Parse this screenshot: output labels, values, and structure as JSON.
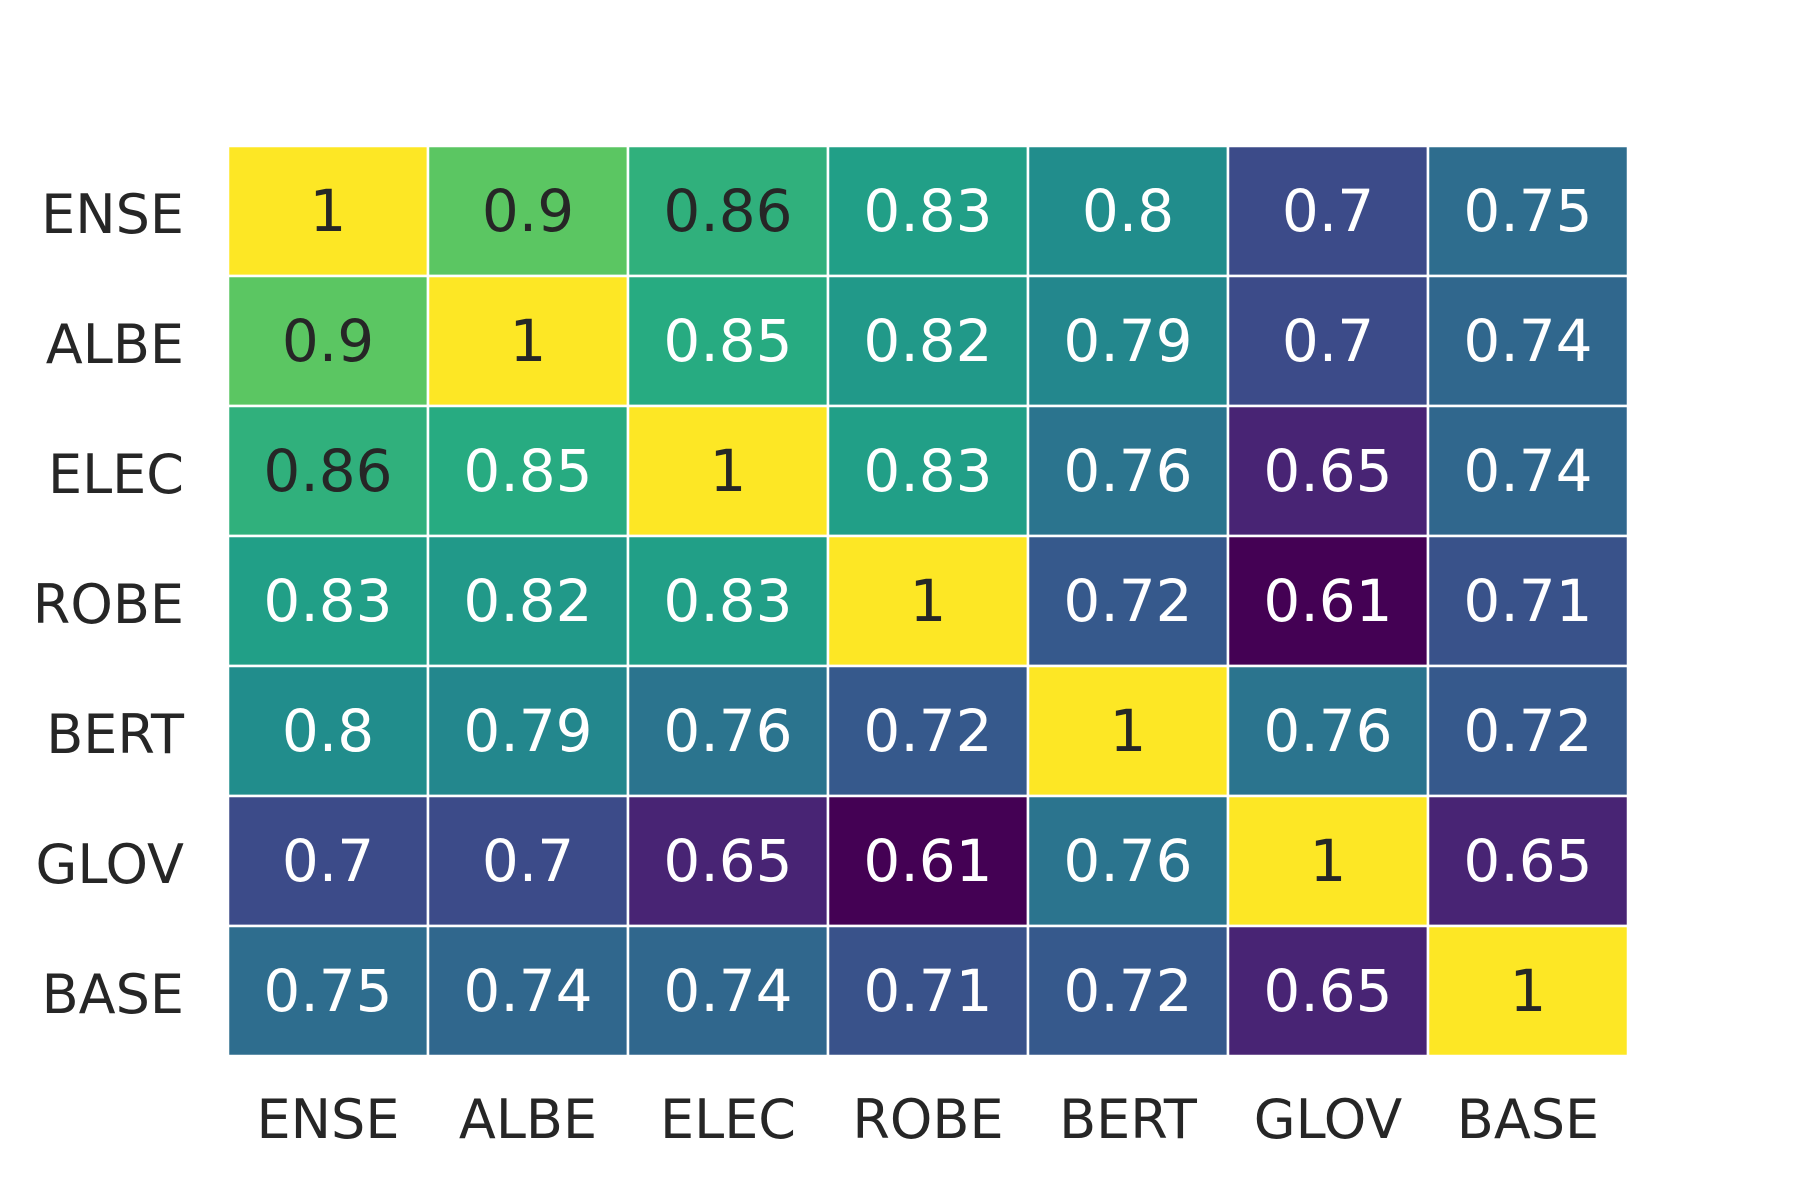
{
  "chart_data": {
    "type": "heatmap",
    "row_labels": [
      "ENSE",
      "ALBE",
      "ELEC",
      "ROBE",
      "BERT",
      "GLOV",
      "BASE"
    ],
    "col_labels": [
      "ENSE",
      "ALBE",
      "ELEC",
      "ROBE",
      "BERT",
      "GLOV",
      "BASE"
    ],
    "values": [
      [
        1,
        0.9,
        0.86,
        0.83,
        0.8,
        0.7,
        0.75
      ],
      [
        0.9,
        1,
        0.85,
        0.82,
        0.79,
        0.7,
        0.74
      ],
      [
        0.86,
        0.85,
        1,
        0.83,
        0.76,
        0.65,
        0.74
      ],
      [
        0.83,
        0.82,
        0.83,
        1,
        0.72,
        0.61,
        0.71
      ],
      [
        0.8,
        0.79,
        0.76,
        0.72,
        1,
        0.76,
        0.72
      ],
      [
        0.7,
        0.7,
        0.65,
        0.61,
        0.76,
        1,
        0.65
      ],
      [
        0.75,
        0.74,
        0.74,
        0.71,
        0.72,
        0.65,
        1
      ]
    ],
    "colormap": "viridis",
    "vmin": 0.61,
    "vmax": 1,
    "colorbar": false,
    "cell_border_color": "#ffffff",
    "dark_text_color": "#262626",
    "light_text_color": "#ffffff"
  }
}
